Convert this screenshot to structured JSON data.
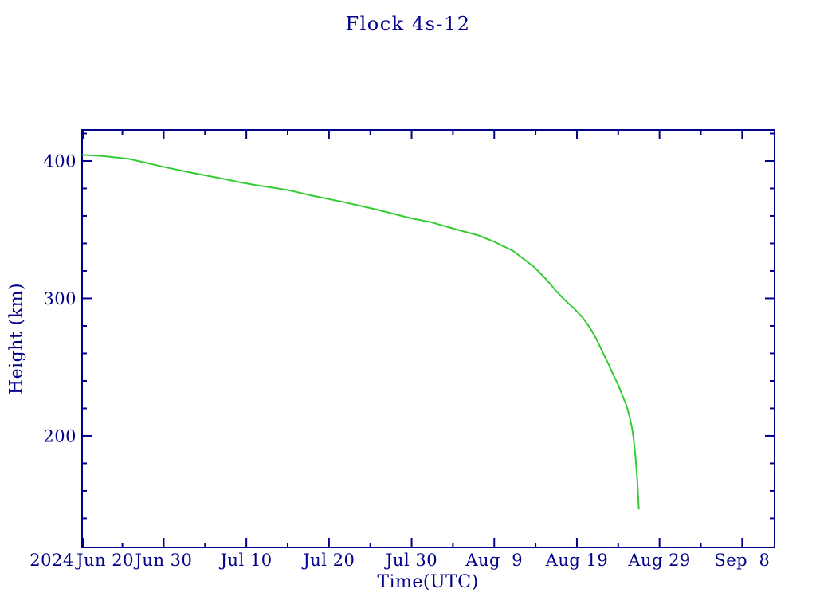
{
  "window": {
    "background": "#ffffff"
  },
  "colors": {
    "axis": "#00008b",
    "text": "#00008b",
    "curve": "#33cc33",
    "background": "#ffffff"
  },
  "chart_data": {
    "type": "line",
    "title": "Flock 4s-12",
    "xlabel": "Time(UTC)",
    "ylabel": "Height (km)",
    "year_label": "2024",
    "x_unit": "days after 2024 Jun 20 00:00 UTC",
    "y_unit": "km",
    "x_range": [
      0.12,
      83.92
    ],
    "y_range": [
      118.8,
      422.6
    ],
    "grid": false,
    "legend_position": "none",
    "ticks_direction": "inward, mirrored on all four sides",
    "x_major_ticks": [
      {
        "day": 0.12,
        "label": "Jun 20",
        "label_dx": 28
      },
      {
        "day": 10,
        "label": "Jun 30"
      },
      {
        "day": 20,
        "label": "Jul 10"
      },
      {
        "day": 30,
        "label": "Jul 20"
      },
      {
        "day": 40,
        "label": "Jul 30"
      },
      {
        "day": 50,
        "label": "Aug  9"
      },
      {
        "day": 60,
        "label": "Aug 19"
      },
      {
        "day": 70,
        "label": "Aug 29"
      },
      {
        "day": 80,
        "label": "Sep  8"
      }
    ],
    "x_minor_tick_days": [
      5,
      15,
      25,
      35,
      45,
      55,
      65,
      75
    ],
    "y_major_ticks": [
      {
        "km": 200,
        "label": "200"
      },
      {
        "km": 300,
        "label": "300"
      },
      {
        "km": 400,
        "label": "400"
      }
    ],
    "y_minor_ticks_km": [
      140,
      160,
      180,
      220,
      240,
      260,
      280,
      320,
      340,
      360,
      380,
      420
    ],
    "series": [
      {
        "name": "Flock 4s-12 orbital height",
        "color": "#33cc33",
        "points": [
          [
            0.12,
            404.5
          ],
          [
            2.7,
            403.5
          ],
          [
            5.8,
            401.5
          ],
          [
            8.0,
            398.5
          ],
          [
            10.1,
            395.5
          ],
          [
            13.3,
            391.5
          ],
          [
            17.2,
            387.0
          ],
          [
            19.1,
            384.6
          ],
          [
            21.0,
            382.6
          ],
          [
            24.9,
            379.0
          ],
          [
            27.8,
            375.0
          ],
          [
            31.6,
            370.3
          ],
          [
            34.8,
            366.0
          ],
          [
            36.5,
            363.5
          ],
          [
            39.8,
            358.5
          ],
          [
            42.3,
            355.5
          ],
          [
            45.1,
            350.7
          ],
          [
            48.0,
            346.0
          ],
          [
            49.95,
            341.4
          ],
          [
            52.3,
            334.5
          ],
          [
            54.8,
            323.0
          ],
          [
            56.2,
            314.5
          ],
          [
            57.7,
            304.0
          ],
          [
            58.6,
            298.5
          ],
          [
            59.7,
            292.5
          ],
          [
            60.7,
            286.0
          ],
          [
            61.6,
            278.5
          ],
          [
            62.4,
            270.0
          ],
          [
            63.1,
            261.0
          ],
          [
            63.8,
            252.5
          ],
          [
            64.4,
            244.5
          ],
          [
            65.0,
            237.0
          ],
          [
            65.5,
            229.5
          ],
          [
            66.0,
            222.0
          ],
          [
            66.4,
            213.5
          ],
          [
            66.7,
            205.0
          ],
          [
            66.9,
            196.0
          ],
          [
            67.1,
            184.0
          ],
          [
            67.3,
            168.0
          ],
          [
            67.4,
            157.0
          ],
          [
            67.5,
            146.5
          ]
        ]
      }
    ]
  }
}
